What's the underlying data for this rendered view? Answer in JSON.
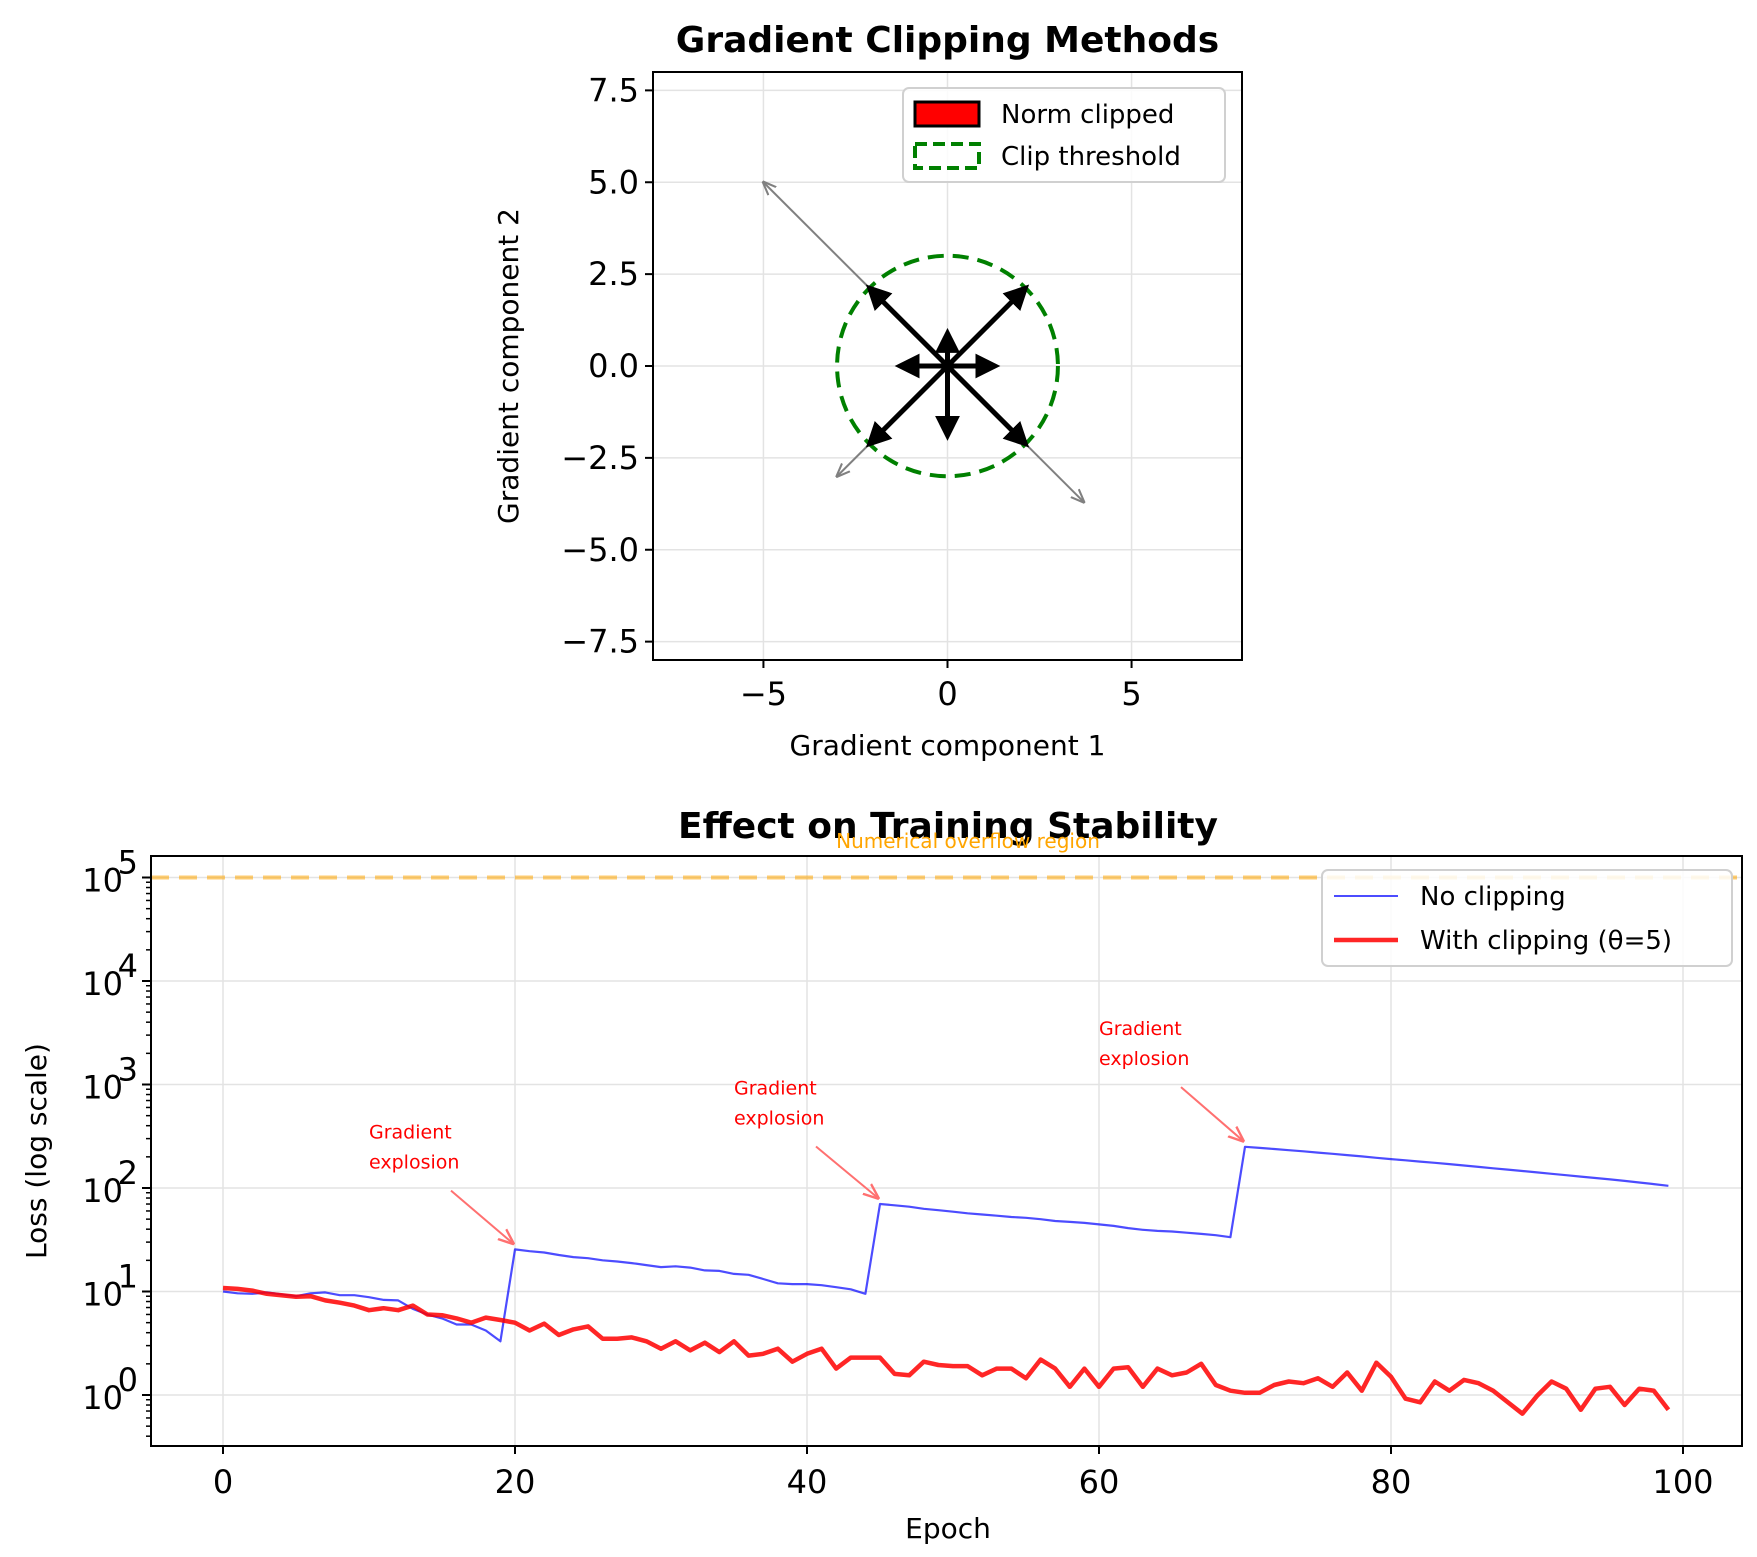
{
  "chart_data": [
    {
      "type": "quiver",
      "title": "Gradient Clipping Methods",
      "xlabel": "Gradient component 1",
      "ylabel": "Gradient component 2",
      "xlim": [
        -8,
        8
      ],
      "ylim": [
        -8,
        8
      ],
      "xticks": [
        -5,
        0,
        5
      ],
      "xtick_labels": [
        "−5",
        "0",
        "5"
      ],
      "yticks": [
        -7.5,
        -5.0,
        -2.5,
        0.0,
        2.5,
        5.0,
        7.5
      ],
      "ytick_labels": [
        "−7.5",
        "−5.0",
        "−2.5",
        "0.0",
        "2.5",
        "5.0",
        "7.5"
      ],
      "grid": true,
      "clip_threshold": 3,
      "original_vectors": [
        {
          "dx": -5.0,
          "dy": 5.0
        },
        {
          "dx": -3.0,
          "dy": -3.0
        },
        {
          "dx": 3.7,
          "dy": -3.7
        }
      ],
      "clipped_vectors": [
        {
          "dx": -2.12,
          "dy": 2.12
        },
        {
          "dx": 2.12,
          "dy": 2.12
        },
        {
          "dx": -2.12,
          "dy": -2.12
        },
        {
          "dx": 2.12,
          "dy": -2.12
        },
        {
          "dx": -1.3,
          "dy": 0
        },
        {
          "dx": 1.3,
          "dy": 0
        },
        {
          "dx": 0,
          "dy": 0.9
        },
        {
          "dx": 0,
          "dy": -1.9
        }
      ],
      "legend": {
        "position": "upper-right",
        "entries": [
          {
            "label": "Norm clipped",
            "style": "patch",
            "color": "#ff0000",
            "edge": "#000000"
          },
          {
            "label": "Clip threshold",
            "style": "dashed-patch",
            "color": "#008000"
          }
        ]
      },
      "colors": {
        "original": "#808080",
        "clipped": "#000000",
        "threshold": "#008000"
      }
    },
    {
      "type": "line",
      "title": "Effect on Training Stability",
      "xlabel": "Epoch",
      "ylabel": "Loss (log scale)",
      "yscale": "log",
      "xlim": [
        -5,
        105
      ],
      "ylim": [
        0.38,
        180000
      ],
      "xticks": [
        0,
        20,
        40,
        60,
        80,
        100
      ],
      "ytick_exponents": [
        0,
        1,
        2,
        3,
        4,
        5
      ],
      "grid": true,
      "legend": {
        "position": "upper-right"
      },
      "hline": {
        "y": 100000,
        "color": "#ffa500",
        "style": "dashed",
        "label": "Numerical overflow region",
        "label_x": 50
      },
      "series": [
        {
          "name": "No clipping",
          "color": "#0000ff",
          "x_start": 0,
          "values": [
            10.0,
            9.6,
            9.5,
            9.8,
            9.4,
            9.0,
            9.6,
            9.8,
            9.2,
            9.2,
            8.8,
            8.3,
            8.2,
            6.8,
            6.0,
            5.5,
            4.8,
            4.8,
            4.2,
            3.3,
            25.5,
            24.5,
            23.8,
            22.5,
            21.5,
            21.0,
            20.0,
            19.5,
            18.8,
            18.0,
            17.2,
            17.5,
            17.0,
            16.0,
            15.8,
            14.8,
            14.5,
            13.2,
            12.0,
            11.8,
            11.8,
            11.5,
            11.0,
            10.5,
            9.5,
            70.0,
            68.0,
            66.0,
            63.0,
            61.0,
            59.0,
            57.0,
            55.5,
            54.0,
            52.5,
            51.5,
            50.0,
            48.0,
            47.0,
            46.0,
            44.5,
            43.0,
            41.0,
            39.5,
            38.5,
            38.0,
            37.0,
            36.0,
            35.0,
            33.5,
            250.0,
            244.0,
            238.0,
            232.0,
            226.0,
            220.0,
            214.0,
            208.0,
            202.0,
            196.0,
            190.0,
            185.0,
            180.0,
            175.0,
            170.0,
            165.0,
            160.0,
            155.0,
            150.5,
            146.0,
            141.5,
            137.0,
            133.0,
            129.0,
            125.0,
            121.0,
            117.0,
            113.0,
            109.0,
            105.0
          ]
        },
        {
          "name": "With clipping (θ=5)",
          "color": "#ff0000",
          "x_start": 0,
          "values": [
            10.8,
            10.6,
            10.2,
            9.5,
            9.2,
            8.9,
            9.0,
            8.2,
            7.8,
            7.3,
            6.6,
            6.9,
            6.6,
            7.3,
            6.0,
            5.9,
            5.5,
            5.0,
            5.6,
            5.3,
            5.0,
            4.2,
            4.9,
            3.8,
            4.3,
            4.6,
            3.5,
            3.5,
            3.6,
            3.3,
            2.8,
            3.3,
            2.7,
            3.2,
            2.6,
            3.3,
            2.4,
            2.5,
            2.8,
            2.1,
            2.5,
            2.8,
            1.8,
            2.3,
            2.3,
            2.3,
            1.6,
            1.55,
            2.1,
            1.95,
            1.9,
            1.9,
            1.55,
            1.8,
            1.8,
            1.45,
            2.2,
            1.8,
            1.2,
            1.8,
            1.2,
            1.8,
            1.85,
            1.2,
            1.8,
            1.55,
            1.65,
            2.0,
            1.25,
            1.1,
            1.05,
            1.05,
            1.25,
            1.35,
            1.3,
            1.45,
            1.2,
            1.65,
            1.1,
            2.05,
            1.5,
            0.92,
            0.85,
            1.35,
            1.1,
            1.4,
            1.3,
            1.1,
            0.85,
            0.66,
            0.98,
            1.35,
            1.15,
            0.72,
            1.15,
            1.2,
            0.8,
            1.15,
            1.1,
            0.72
          ]
        }
      ],
      "annotations": [
        {
          "text": "Gradient\nexplosion",
          "target_x": 20,
          "target_y": 25.5,
          "text_x": 10,
          "text_y": 300
        },
        {
          "text": "Gradient\nexplosion",
          "target_x": 45,
          "target_y": 70,
          "text_x": 35,
          "text_y": 800
        },
        {
          "text": "Gradient\nexplosion",
          "target_x": 70,
          "target_y": 250,
          "text_x": 60,
          "text_y": 3000
        }
      ]
    }
  ]
}
